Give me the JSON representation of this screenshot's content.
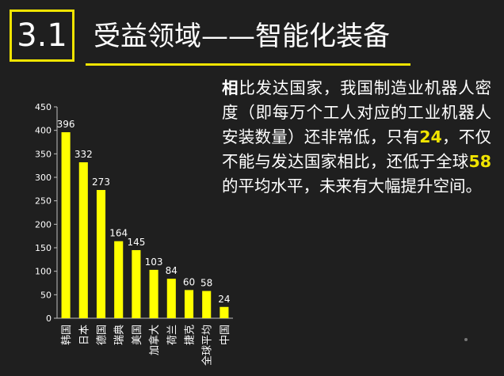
{
  "header": {
    "section_number": "3.1",
    "title": "受益领域——智能化装备"
  },
  "body": {
    "parts": [
      {
        "text": "相",
        "style": "lead"
      },
      {
        "text": "比发达国家，我国制造业机器人密度（即每万个工人对应的工业机器人安装数量）还非常低，只有",
        "style": "normal"
      },
      {
        "text": "24",
        "style": "hl"
      },
      {
        "text": "，不仅不能与发达国家相比，还低于全球",
        "style": "normal"
      },
      {
        "text": "58",
        "style": "hl"
      },
      {
        "text": "的平均水平，未来有大幅提升空间。",
        "style": "normal"
      }
    ]
  },
  "chart_data": {
    "type": "bar",
    "categories": [
      "韩国",
      "日本",
      "德国",
      "瑞典",
      "美国",
      "加拿大",
      "荷兰",
      "捷克",
      "全球平均",
      "中国"
    ],
    "values": [
      396,
      332,
      273,
      164,
      145,
      103,
      84,
      60,
      58,
      24
    ],
    "ylim": [
      0,
      450
    ],
    "yticks": [
      0,
      50,
      100,
      150,
      200,
      250,
      300,
      350,
      400,
      450
    ],
    "data_labels": true,
    "bar_color": "#ffff00",
    "grid": false
  },
  "colors": {
    "accent": "#f0e400",
    "background": "#1f1f1f",
    "text": "#ffffff"
  }
}
